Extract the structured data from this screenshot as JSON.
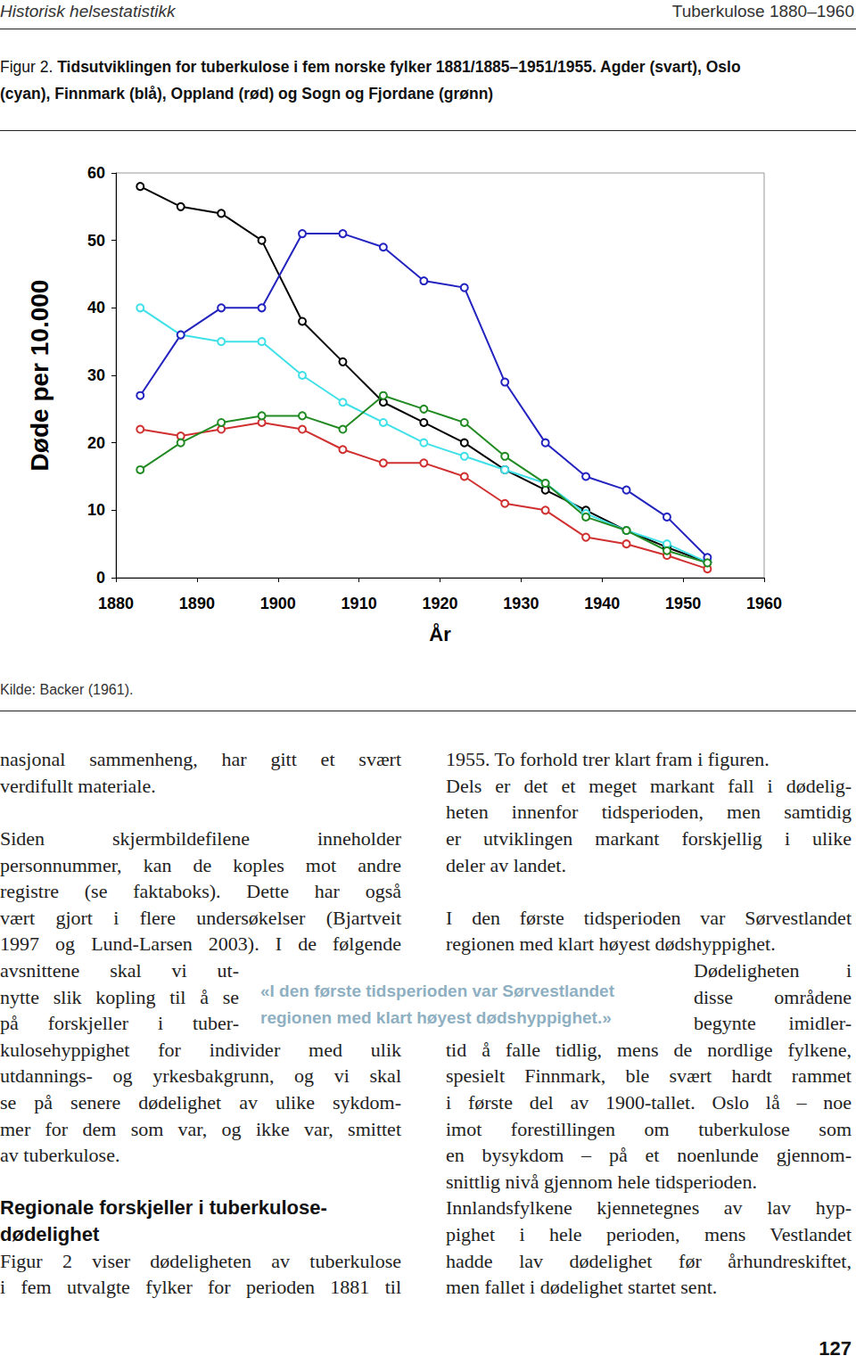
{
  "header": {
    "left": "Historisk helsestatistikk",
    "right": "Tuberkulose 1880–1960"
  },
  "figure": {
    "label": "Figur 2.",
    "caption_lines": [
      "Tidsutviklingen for tuberkulose i fem norske fylker 1881/1885–1951/1955. Agder (svart), Oslo",
      "(cyan), Finnmark (blå), Oppland (rød) og Sogn og Fjordane (grønn)"
    ],
    "source": "Kilde: Backer (1961)."
  },
  "chart_data": {
    "type": "line",
    "x_label": "År",
    "y_label": "Døde per 10.000",
    "x": [
      1883,
      1888,
      1893,
      1898,
      1903,
      1908,
      1913,
      1918,
      1923,
      1928,
      1933,
      1938,
      1943,
      1948,
      1953
    ],
    "series": [
      {
        "name": "Agder",
        "color": "#000000",
        "values": [
          58,
          55,
          54,
          50,
          38,
          32,
          26,
          23,
          20,
          16,
          13,
          10,
          7,
          4.5,
          2.3
        ]
      },
      {
        "name": "Oslo",
        "color": "#3fe0e8",
        "values": [
          40,
          36,
          35,
          35,
          30,
          26,
          23,
          20,
          18,
          16,
          14,
          9.5,
          7,
          5,
          2.3
        ]
      },
      {
        "name": "Finnmark",
        "color": "#2323c0",
        "values": [
          27,
          36,
          40,
          40,
          51,
          51,
          49,
          44,
          43,
          29,
          20,
          15,
          13,
          9,
          3
        ]
      },
      {
        "name": "Oppland",
        "color": "#d03030",
        "values": [
          22,
          21,
          22,
          23,
          22,
          19,
          17,
          17,
          15,
          11,
          10,
          6,
          5,
          3.3,
          1.3
        ]
      },
      {
        "name": "Sogn og Fjordane",
        "color": "#228a22",
        "values": [
          16,
          20,
          23,
          24,
          24,
          22,
          27,
          25,
          23,
          18,
          14,
          9,
          7,
          4,
          2.2
        ]
      }
    ],
    "xlim": [
      1880,
      1960
    ],
    "xticks": [
      1880,
      1890,
      1900,
      1910,
      1920,
      1930,
      1940,
      1950,
      1960
    ],
    "ylim": [
      0,
      60
    ],
    "yticks": [
      0,
      10,
      20,
      30,
      40,
      50,
      60
    ],
    "grid": false,
    "marker": "circle"
  },
  "columns": [
    [
      {
        "type": "paragraph",
        "lines": [
          "nasjonal sammenheng, har gitt et svært",
          "verdifullt materiale."
        ]
      },
      {
        "type": "paragraph",
        "lines": [
          "Siden skjermbildefilene inneholder",
          "personnummer, kan de koples mot andre",
          "registre (se faktaboks). Dette har også",
          "vært gjort i flere undersøkelser (Bjartveit",
          "1997 og Lund-Larsen 2003). I de følgende",
          "avsnittene skal vi ut-",
          "nytte slik kopling til å se",
          "på forskjeller i tuber-",
          "kulosehyppighet for individer med ulik",
          "utdannings- og yrkesbakgrunn, og vi skal",
          "se på senere dødelighet av ulike sykdom-",
          "mer for dem som var, og ikke var, smittet",
          "av tuberkulose."
        ]
      },
      {
        "type": "heading",
        "lines": [
          "Regionale forskjeller i tuberkulose-",
          "dødelighet"
        ]
      },
      {
        "type": "paragraph",
        "lines": [
          "Figur 2 viser dødeligheten av tuberkulose",
          "i fem utvalgte fylker for perioden 1881 til"
        ]
      }
    ],
    [
      {
        "type": "paragraph",
        "lines": [
          "1955. To forhold trer klart fram i figuren.",
          "Dels er det et meget markant fall i dødelig-",
          "heten innenfor tidsperioden, men samtidig",
          "er utviklingen markant forskjellig i ulike",
          "deler av landet."
        ]
      },
      {
        "type": "paragraph",
        "lines": [
          "I den første tidsperioden var Sørvestlandet",
          "regionen med klart høyest dødshyppighet.",
          "Dødeligheten i",
          "disse områdene",
          "begynte imidler-",
          "tid å falle tidlig, mens de nordlige fylkene,",
          "spesielt Finnmark, ble svært hardt rammet",
          "i første del av 1900-tallet. Oslo lå – noe",
          "imot forestillingen om tuberkulose som",
          "en bysykdom – på et noenlunde gjennom-",
          "snittlig nivå gjennom hele tidsperioden.",
          "Innlandsfylkene kjennetegnes av lav hyp-",
          "pighet i hele perioden, mens Vestlandet",
          "hadde lav dødelighet før århundreskiftet,",
          "men fallet i dødelighet startet sent."
        ]
      }
    ]
  ],
  "pull_quote": {
    "lines": [
      "«I den første tidsperioden var Sørvestlandet",
      "regionen med klart høyest dødshyppighet.»"
    ]
  },
  "page_number": 127
}
